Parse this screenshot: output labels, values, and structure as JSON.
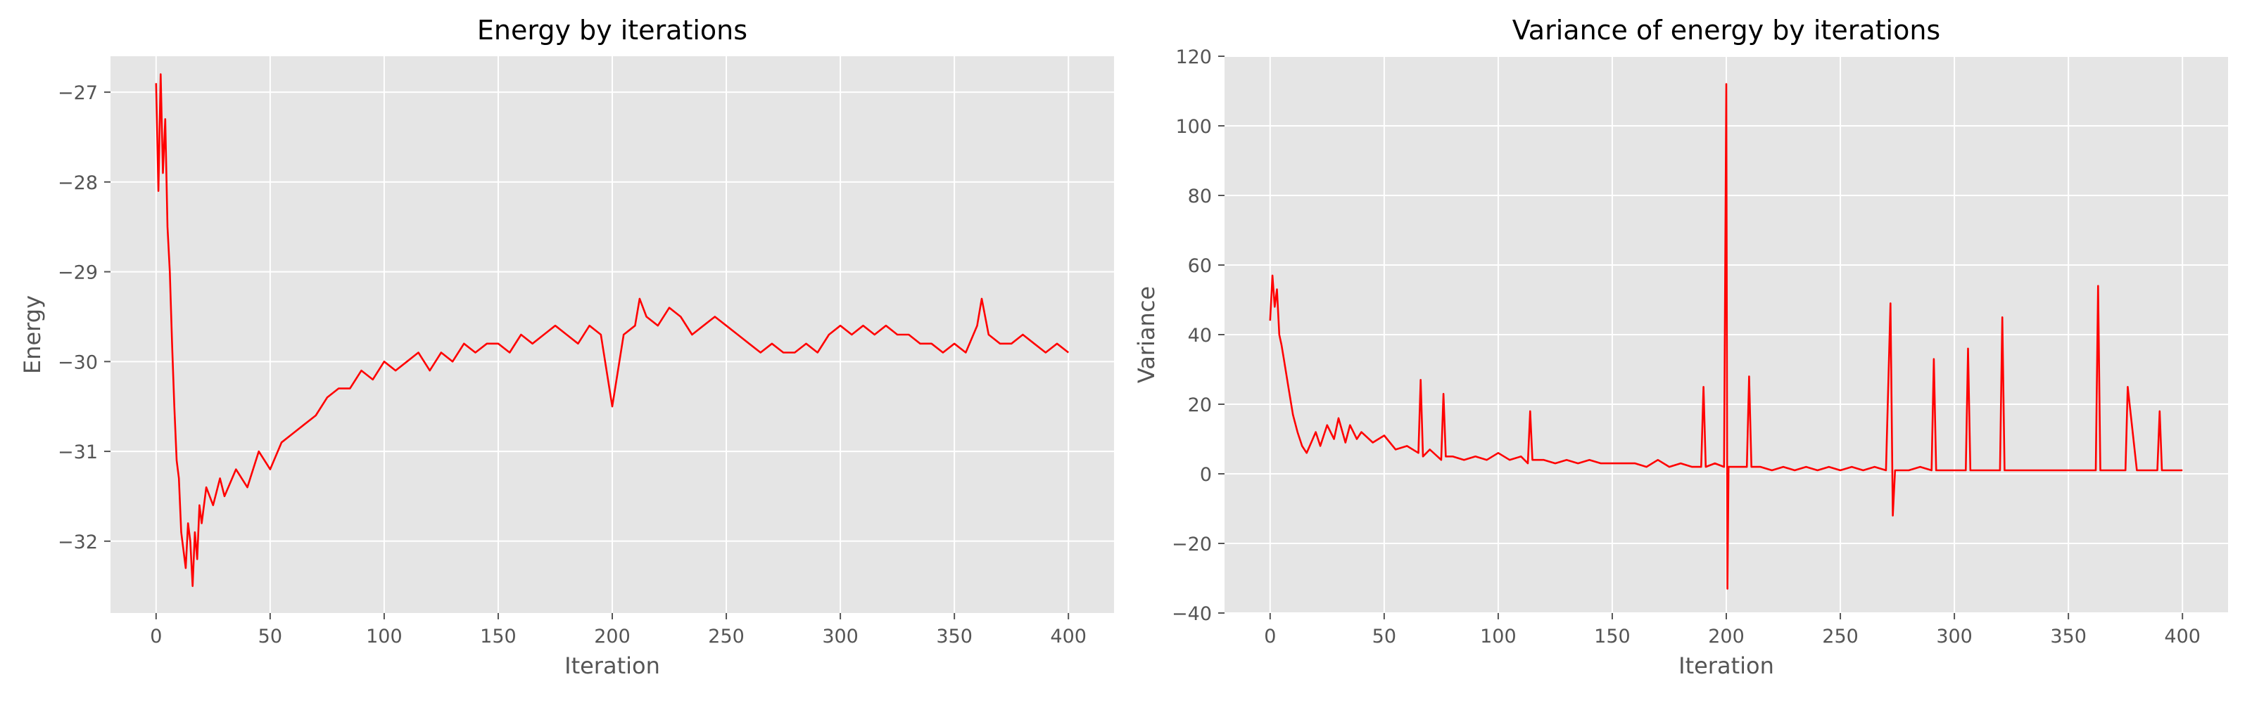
{
  "colors": {
    "series": "#ff0000",
    "plot_background": "#e5e5e5",
    "grid": "#ffffff",
    "text": "#555555"
  },
  "chart_data": [
    {
      "type": "line",
      "title": "Energy by iterations",
      "xlabel": "Iteration",
      "ylabel": "Energy",
      "xlim": [
        -20,
        420
      ],
      "ylim": [
        -32.8,
        -26.6
      ],
      "xticks": [
        0,
        50,
        100,
        150,
        200,
        250,
        300,
        350,
        400
      ],
      "yticks": [
        -32,
        -31,
        -30,
        -29,
        -28,
        -27
      ],
      "ytick_labels": [
        "−32",
        "−31",
        "−30",
        "−29",
        "−28",
        "−27"
      ],
      "grid": true,
      "series": [
        {
          "color": "#ff0000",
          "x": [
            0,
            1,
            2,
            3,
            4,
            5,
            6,
            7,
            8,
            9,
            10,
            11,
            12,
            13,
            14,
            15,
            16,
            17,
            18,
            19,
            20,
            22,
            25,
            28,
            30,
            35,
            40,
            45,
            50,
            55,
            60,
            65,
            70,
            75,
            80,
            85,
            90,
            95,
            100,
            105,
            110,
            115,
            120,
            125,
            130,
            135,
            140,
            145,
            150,
            155,
            160,
            165,
            170,
            175,
            180,
            185,
            190,
            195,
            200,
            205,
            210,
            212,
            215,
            220,
            225,
            230,
            235,
            240,
            245,
            250,
            255,
            260,
            265,
            270,
            275,
            280,
            285,
            290,
            295,
            300,
            305,
            310,
            315,
            320,
            325,
            330,
            335,
            340,
            345,
            350,
            355,
            360,
            362,
            365,
            370,
            375,
            380,
            385,
            390,
            395,
            400
          ],
          "values": [
            -26.9,
            -28.1,
            -26.8,
            -27.9,
            -27.3,
            -28.5,
            -29.0,
            -29.8,
            -30.5,
            -31.1,
            -31.3,
            -31.9,
            -32.1,
            -32.3,
            -31.8,
            -32.0,
            -32.5,
            -31.9,
            -32.2,
            -31.6,
            -31.8,
            -31.4,
            -31.6,
            -31.3,
            -31.5,
            -31.2,
            -31.4,
            -31.0,
            -31.2,
            -30.9,
            -30.8,
            -30.7,
            -30.6,
            -30.4,
            -30.3,
            -30.3,
            -30.1,
            -30.2,
            -30.0,
            -30.1,
            -30.0,
            -29.9,
            -30.1,
            -29.9,
            -30.0,
            -29.8,
            -29.9,
            -29.8,
            -29.8,
            -29.9,
            -29.7,
            -29.8,
            -29.7,
            -29.6,
            -29.7,
            -29.8,
            -29.6,
            -29.7,
            -30.5,
            -29.7,
            -29.6,
            -29.3,
            -29.5,
            -29.6,
            -29.4,
            -29.5,
            -29.7,
            -29.6,
            -29.5,
            -29.6,
            -29.7,
            -29.8,
            -29.9,
            -29.8,
            -29.9,
            -29.9,
            -29.8,
            -29.9,
            -29.7,
            -29.6,
            -29.7,
            -29.6,
            -29.7,
            -29.6,
            -29.7,
            -29.7,
            -29.8,
            -29.8,
            -29.9,
            -29.8,
            -29.9,
            -29.6,
            -29.3,
            -29.7,
            -29.8,
            -29.8,
            -29.7,
            -29.8,
            -29.9,
            -29.8,
            -29.9
          ]
        }
      ]
    },
    {
      "type": "line",
      "title": "Variance of energy by iterations",
      "xlabel": "Iteration",
      "ylabel": "Variance",
      "xlim": [
        -20,
        420
      ],
      "ylim": [
        -40,
        120
      ],
      "xticks": [
        0,
        50,
        100,
        150,
        200,
        250,
        300,
        350,
        400
      ],
      "yticks": [
        -40,
        -20,
        0,
        20,
        40,
        60,
        80,
        100,
        120
      ],
      "ytick_labels": [
        "−40",
        "−20",
        "0",
        "20",
        "40",
        "60",
        "80",
        "100",
        "120"
      ],
      "grid": true,
      "series": [
        {
          "color": "#ff0000",
          "x": [
            0,
            1,
            2,
            3,
            4,
            5,
            6,
            8,
            10,
            12,
            14,
            16,
            18,
            20,
            22,
            25,
            28,
            30,
            33,
            35,
            38,
            40,
            45,
            50,
            55,
            60,
            65,
            66,
            67,
            70,
            75,
            76,
            77,
            80,
            85,
            90,
            95,
            100,
            105,
            110,
            113,
            114,
            115,
            120,
            125,
            130,
            135,
            140,
            145,
            150,
            155,
            160,
            165,
            170,
            175,
            180,
            185,
            189,
            190,
            191,
            195,
            199,
            200,
            200.5,
            201,
            205,
            209,
            210,
            211,
            215,
            220,
            225,
            230,
            235,
            240,
            245,
            250,
            255,
            260,
            265,
            270,
            272,
            273,
            274,
            280,
            285,
            290,
            291,
            292,
            300,
            305,
            306,
            307,
            315,
            320,
            321,
            322,
            330,
            335,
            340,
            345,
            350,
            355,
            362,
            363,
            364,
            370,
            375,
            376,
            380,
            385,
            389,
            390,
            391,
            395,
            400
          ],
          "values": [
            44,
            57,
            48,
            53,
            40,
            37,
            33,
            25,
            17,
            12,
            8,
            6,
            9,
            12,
            8,
            14,
            10,
            16,
            9,
            14,
            10,
            12,
            9,
            11,
            7,
            8,
            6,
            27,
            5,
            7,
            4,
            23,
            5,
            5,
            4,
            5,
            4,
            6,
            4,
            5,
            3,
            18,
            4,
            4,
            3,
            4,
            3,
            4,
            3,
            3,
            3,
            3,
            2,
            4,
            2,
            3,
            2,
            2,
            25,
            2,
            3,
            2,
            112,
            -33,
            2,
            2,
            2,
            28,
            2,
            2,
            1,
            2,
            1,
            2,
            1,
            2,
            1,
            2,
            1,
            2,
            1,
            49,
            -12,
            1,
            1,
            2,
            1,
            33,
            1,
            1,
            1,
            36,
            1,
            1,
            1,
            45,
            1,
            1,
            1,
            1,
            1,
            1,
            1,
            1,
            54,
            1,
            1,
            1,
            25,
            1,
            1,
            1,
            18,
            1,
            1,
            1
          ]
        }
      ]
    }
  ]
}
